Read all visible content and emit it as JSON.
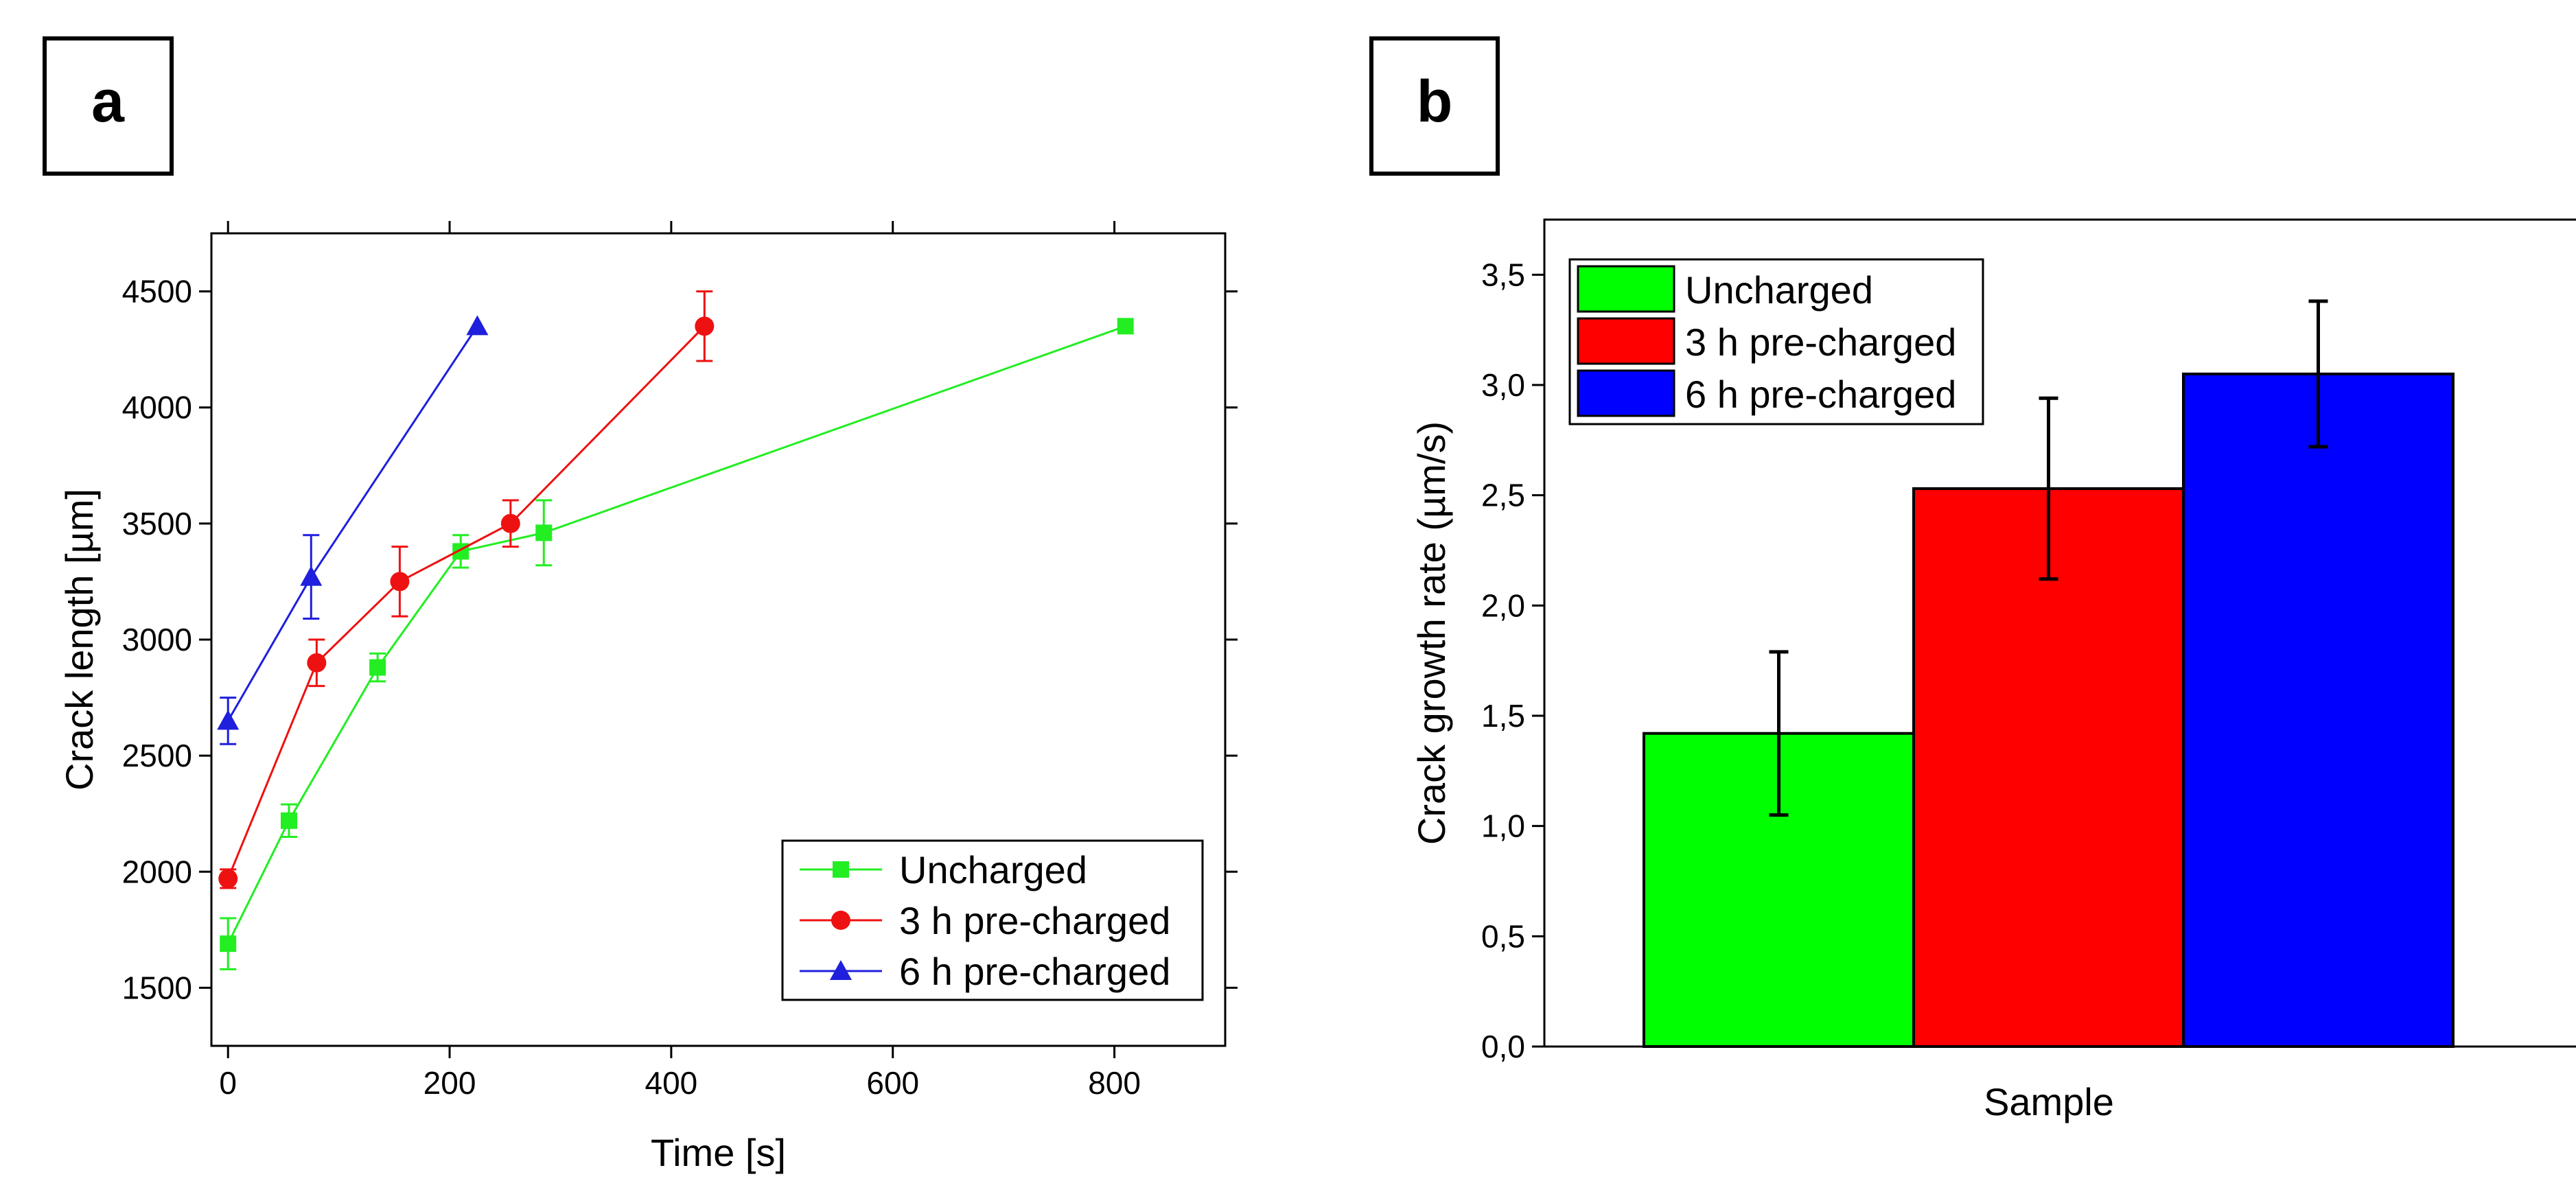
{
  "chart_data": [
    {
      "panel": "a",
      "type": "line",
      "xlabel": "Time [s]",
      "ylabel": "Crack length [µm]",
      "xlim": [
        -15,
        900
      ],
      "ylim": [
        1250,
        4750
      ],
      "xticks": [
        0,
        200,
        400,
        600,
        800
      ],
      "yticks": [
        1500,
        2000,
        2500,
        3000,
        3500,
        4000,
        4500
      ],
      "xtick_labels": [
        "0",
        "200",
        "400",
        "600",
        "800"
      ],
      "ytick_labels": [
        "1500",
        "2000",
        "2500",
        "3000",
        "3500",
        "4000",
        "4500"
      ],
      "legend_position": "bottom-right",
      "series": [
        {
          "name": "Uncharged",
          "color": "#22ee22",
          "marker": "square",
          "x": [
            0,
            55,
            135,
            210,
            285,
            810
          ],
          "y": [
            1690,
            2220,
            2880,
            3380,
            3460,
            4350
          ],
          "err": [
            110,
            70,
            60,
            70,
            140,
            0
          ]
        },
        {
          "name": "3 h pre-charged",
          "color": "#ee1111",
          "marker": "circle",
          "x": [
            0,
            80,
            155,
            255,
            430
          ],
          "y": [
            1970,
            2900,
            3250,
            3500,
            4350
          ],
          "err": [
            40,
            100,
            150,
            100,
            150
          ]
        },
        {
          "name": "6 h pre-charged",
          "color": "#1f1fdd",
          "marker": "triangle",
          "x": [
            0,
            75,
            225
          ],
          "y": [
            2650,
            3270,
            4350
          ],
          "err": [
            100,
            180,
            0
          ]
        }
      ]
    },
    {
      "panel": "b",
      "type": "bar",
      "xlabel": "Sample",
      "ylabel": "Crack growth rate (µm/s)",
      "ylim": [
        0,
        3.75
      ],
      "yticks": [
        0,
        0.5,
        1.0,
        1.5,
        2.0,
        2.5,
        3.0,
        3.5
      ],
      "ytick_labels": [
        "0,0",
        "0,5",
        "1,0",
        "1,5",
        "2,0",
        "2,5",
        "3,0",
        "3,5"
      ],
      "legend_position": "top-left",
      "categories": [
        "Uncharged",
        "3 h pre-charged",
        "6 h pre-charged"
      ],
      "values": [
        1.42,
        2.53,
        3.05
      ],
      "errors": [
        0.37,
        0.41,
        0.33
      ],
      "colors": [
        "#00ff00",
        "#ff0000",
        "#0000ff"
      ]
    }
  ]
}
